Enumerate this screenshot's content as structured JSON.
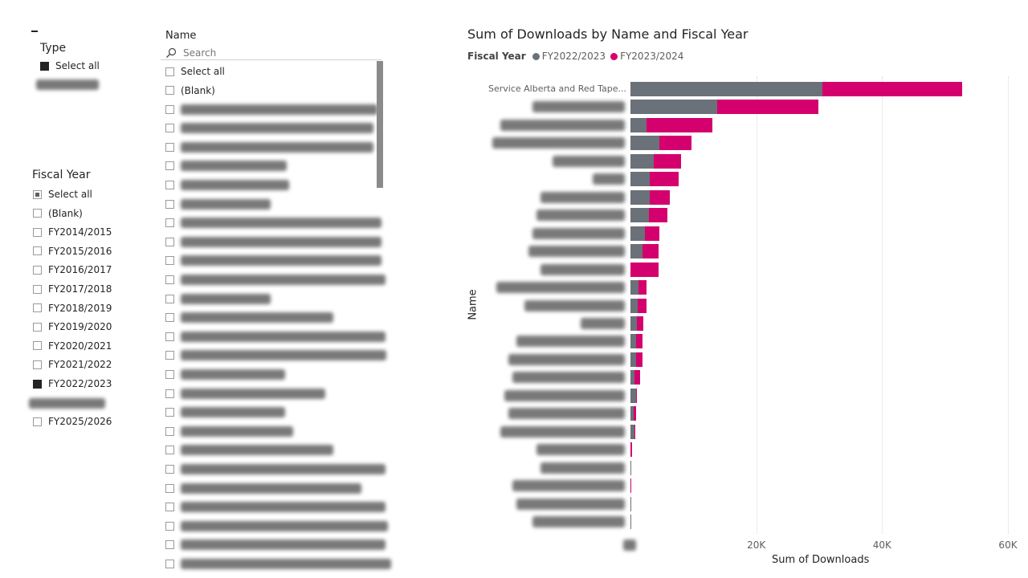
{
  "type_slicer": {
    "title": "Type",
    "items": [
      {
        "label": "Select all",
        "state": "filled"
      },
      {
        "label": "",
        "blurred": true
      }
    ]
  },
  "fiscal_slicer": {
    "title": "Fiscal Year",
    "items": [
      {
        "label": "Select all",
        "state": "partial"
      },
      {
        "label": "(Blank)",
        "state": "empty"
      },
      {
        "label": "FY2014/2015",
        "state": "empty"
      },
      {
        "label": "FY2015/2016",
        "state": "empty"
      },
      {
        "label": "FY2016/2017",
        "state": "empty"
      },
      {
        "label": "FY2017/2018",
        "state": "empty"
      },
      {
        "label": "FY2018/2019",
        "state": "empty"
      },
      {
        "label": "FY2019/2020",
        "state": "empty"
      },
      {
        "label": "FY2020/2021",
        "state": "empty"
      },
      {
        "label": "FY2021/2022",
        "state": "empty"
      },
      {
        "label": "FY2022/2023",
        "state": "filled"
      },
      {
        "label": "",
        "blurred": true
      },
      {
        "label": "FY2025/2026",
        "state": "empty"
      }
    ]
  },
  "name_slicer": {
    "title": "Name",
    "search_placeholder": "Search",
    "items": [
      {
        "label": "Select all"
      },
      {
        "label": "(Blank)"
      }
    ],
    "blurred_item_count": 25
  },
  "chart_data": {
    "type": "bar",
    "orientation": "horizontal",
    "stacked": true,
    "title": "Sum of Downloads by Name and Fiscal Year",
    "legend_title": "Fiscal Year",
    "legend_position": "top-left",
    "xlabel": "Sum of Downloads",
    "ylabel": "Name",
    "xlim": [
      0,
      60000
    ],
    "xticks": [
      "0K",
      "20K",
      "40K",
      "60K"
    ],
    "grid": true,
    "categories": [
      "Service Alberta and Red Tape...",
      "",
      "",
      "",
      "",
      "",
      "",
      "",
      "",
      "",
      "",
      "",
      "",
      "",
      "",
      "",
      "",
      "",
      "",
      "",
      "",
      "",
      "",
      "",
      ""
    ],
    "series": [
      {
        "name": "FY2022/2023",
        "color": "#6B7178",
        "values": [
          30500,
          13800,
          2600,
          4600,
          3700,
          3100,
          3100,
          2900,
          2300,
          1900,
          0,
          1300,
          1100,
          1000,
          900,
          900,
          600,
          900,
          500,
          600,
          0,
          100,
          0,
          50,
          50
        ]
      },
      {
        "name": "FY2023/2024",
        "color": "#D4006E",
        "values": [
          22200,
          16100,
          10400,
          5100,
          4300,
          4600,
          3200,
          3000,
          2300,
          2600,
          4500,
          1300,
          1500,
          1000,
          1000,
          1000,
          900,
          100,
          400,
          200,
          300,
          0,
          100,
          0,
          0
        ]
      }
    ]
  }
}
